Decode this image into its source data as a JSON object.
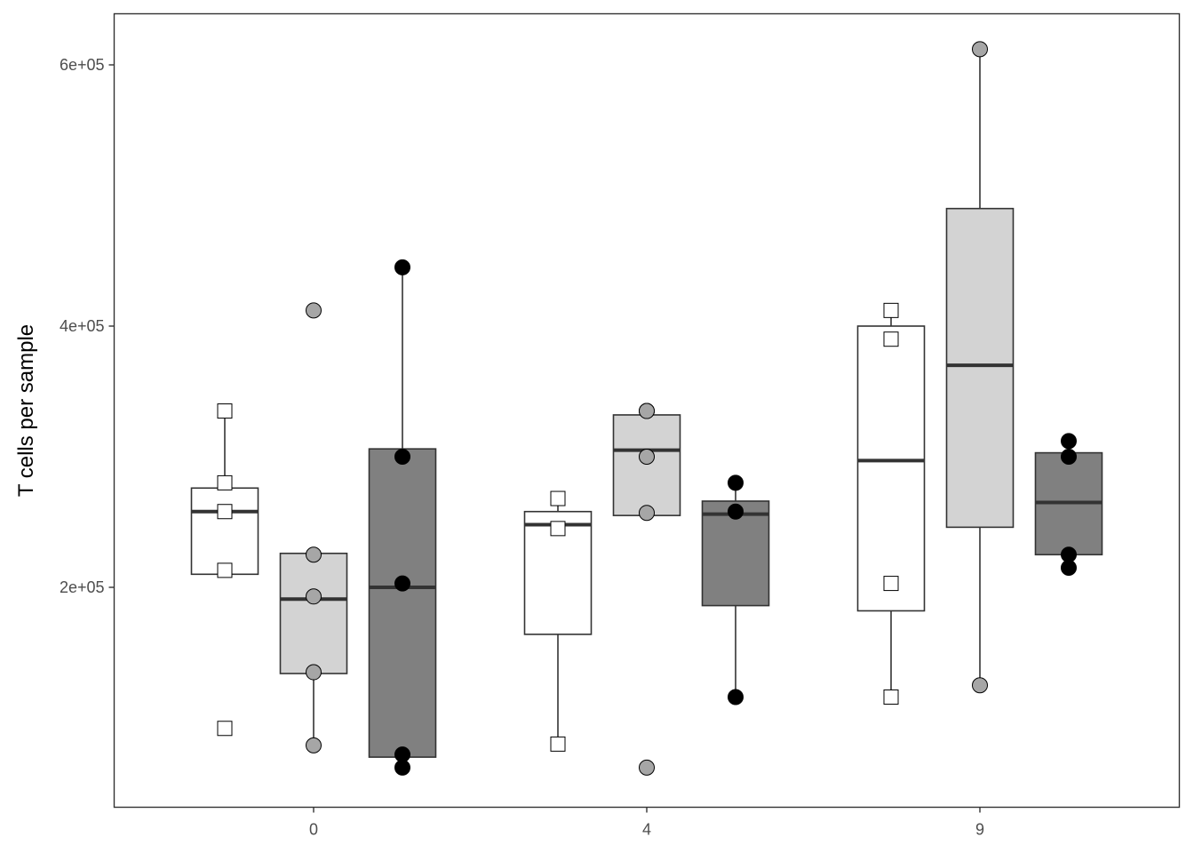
{
  "chart_data": {
    "type": "boxplot",
    "xlabel": "",
    "ylabel": "T cells per sample",
    "categories": [
      "0",
      "4",
      "9"
    ],
    "y_ticks": [
      200000,
      400000,
      600000
    ],
    "y_tick_labels": [
      "2e+05",
      "4e+05",
      "6e+05"
    ],
    "ylim": [
      33000,
      640000
    ],
    "grid": false,
    "legend": "none",
    "groups": [
      {
        "category": "0",
        "boxes": [
          {
            "fill": "#ffffff",
            "point_fill": "#ffffff",
            "point_shape": "square",
            "q1": 210000,
            "median": 258000,
            "q3": 276000,
            "whisker_low": 210000,
            "whisker_high": 335000,
            "points": [
              335000,
              280000,
              258000,
              213000,
              92000
            ]
          },
          {
            "fill": "#d3d3d3",
            "point_fill": "#a6a6a6",
            "point_shape": "circle",
            "q1": 134000,
            "median": 191000,
            "q3": 226000,
            "whisker_low": 78000,
            "whisker_high": 226000,
            "points": [
              412000,
              225000,
              193000,
              135000,
              79000
            ]
          },
          {
            "fill": "#808080",
            "point_fill": "#000000",
            "point_shape": "circle",
            "q1": 70000,
            "median": 200000,
            "q3": 306000,
            "whisker_low": 70000,
            "whisker_high": 445000,
            "points": [
              445000,
              300000,
              203000,
              72000,
              62000
            ]
          }
        ]
      },
      {
        "category": "4",
        "boxes": [
          {
            "fill": "#ffffff",
            "point_fill": "#ffffff",
            "point_shape": "square",
            "q1": 164000,
            "median": 248000,
            "q3": 258000,
            "whisker_low": 80000,
            "whisker_high": 268000,
            "points": [
              268000,
              245000,
              80000
            ]
          },
          {
            "fill": "#d3d3d3",
            "point_fill": "#a6a6a6",
            "point_shape": "circle",
            "q1": 255000,
            "median": 305000,
            "q3": 332000,
            "whisker_low": 255000,
            "whisker_high": 332000,
            "points": [
              335000,
              335000,
              300000,
              257000,
              62000
            ]
          },
          {
            "fill": "#808080",
            "point_fill": "#000000",
            "point_shape": "circle",
            "q1": 186000,
            "median": 256000,
            "q3": 266000,
            "whisker_low": 116000,
            "whisker_high": 280000,
            "points": [
              280000,
              258000,
              116000
            ]
          }
        ]
      },
      {
        "category": "9",
        "boxes": [
          {
            "fill": "#ffffff",
            "point_fill": "#ffffff",
            "point_shape": "square",
            "q1": 182000,
            "median": 297000,
            "q3": 400000,
            "whisker_low": 116000,
            "whisker_high": 412000,
            "points": [
              412000,
              390000,
              203000,
              116000
            ]
          },
          {
            "fill": "#d3d3d3",
            "point_fill": "#a6a6a6",
            "point_shape": "circle",
            "q1": 246000,
            "median": 370000,
            "q3": 490000,
            "whisker_low": 125000,
            "whisker_high": 612000,
            "points": [
              612000,
              125000
            ]
          },
          {
            "fill": "#808080",
            "point_fill": "#000000",
            "point_shape": "circle",
            "q1": 225000,
            "median": 265000,
            "q3": 303000,
            "whisker_low": 215000,
            "whisker_high": 312000,
            "points": [
              312000,
              300000,
              225000,
              215000
            ]
          }
        ]
      }
    ]
  }
}
